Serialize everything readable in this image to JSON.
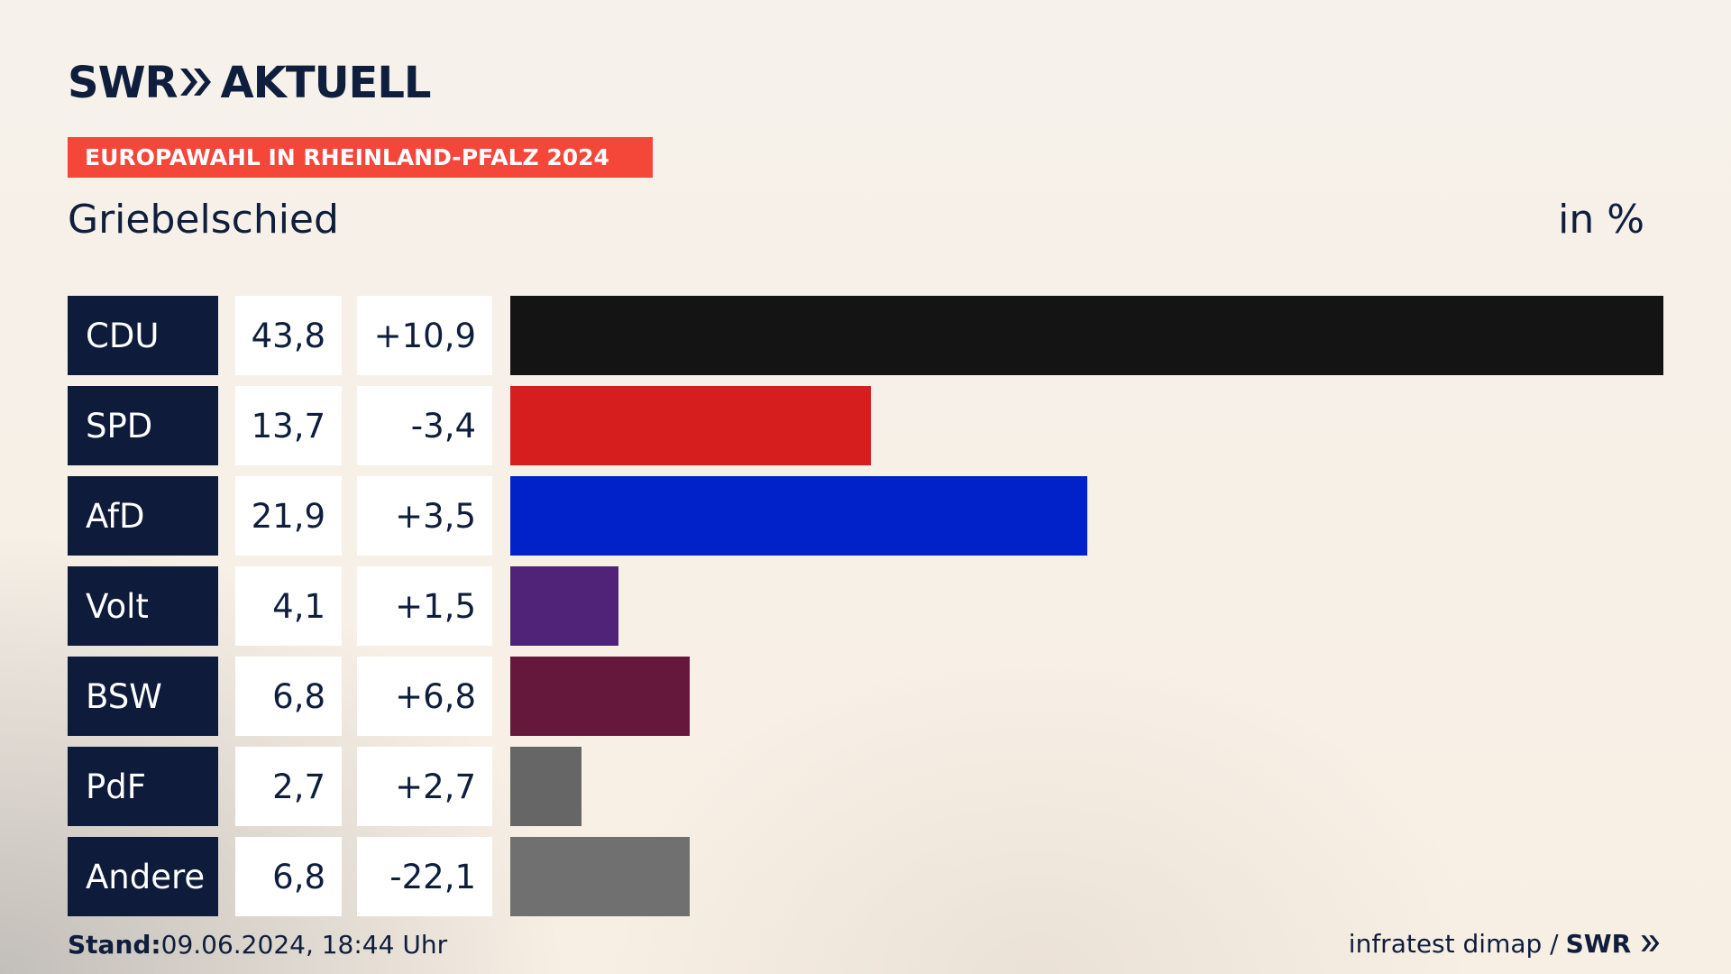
{
  "brand": {
    "swr": "SWR",
    "aktuell": "AKTUELL"
  },
  "banner": "EUROPAWAHL IN RHEINLAND-PFALZ 2024",
  "title": "Griebelschied",
  "unit": "in %",
  "footer": {
    "stand_label": "Stand:",
    "stand_value": "09.06.2024, 18:44 Uhr",
    "source": "infratest dimap /",
    "source_brand": "SWR"
  },
  "chart_data": {
    "type": "bar",
    "orientation": "horizontal",
    "unit": "in %",
    "categories": [
      "CDU",
      "SPD",
      "AfD",
      "Volt",
      "BSW",
      "PdF",
      "Andere"
    ],
    "values": [
      43.8,
      13.7,
      21.9,
      4.1,
      6.8,
      2.7,
      6.8
    ],
    "value_labels": [
      "43,8",
      "13,7",
      "21,9",
      "4,1",
      "6,8",
      "2,7",
      "6,8"
    ],
    "change_labels": [
      "+10,9",
      "-3,4",
      "+3,5",
      "+1,5",
      "+6,8",
      "+2,7",
      "-22,1"
    ],
    "changes": [
      10.9,
      -3.4,
      3.5,
      1.5,
      6.8,
      2.7,
      -22.1
    ],
    "colors": [
      "#141414",
      "#d61e1e",
      "#0022c8",
      "#502379",
      "#65183c",
      "#666666",
      "#707070"
    ],
    "xlim": [
      0,
      43.8
    ]
  }
}
